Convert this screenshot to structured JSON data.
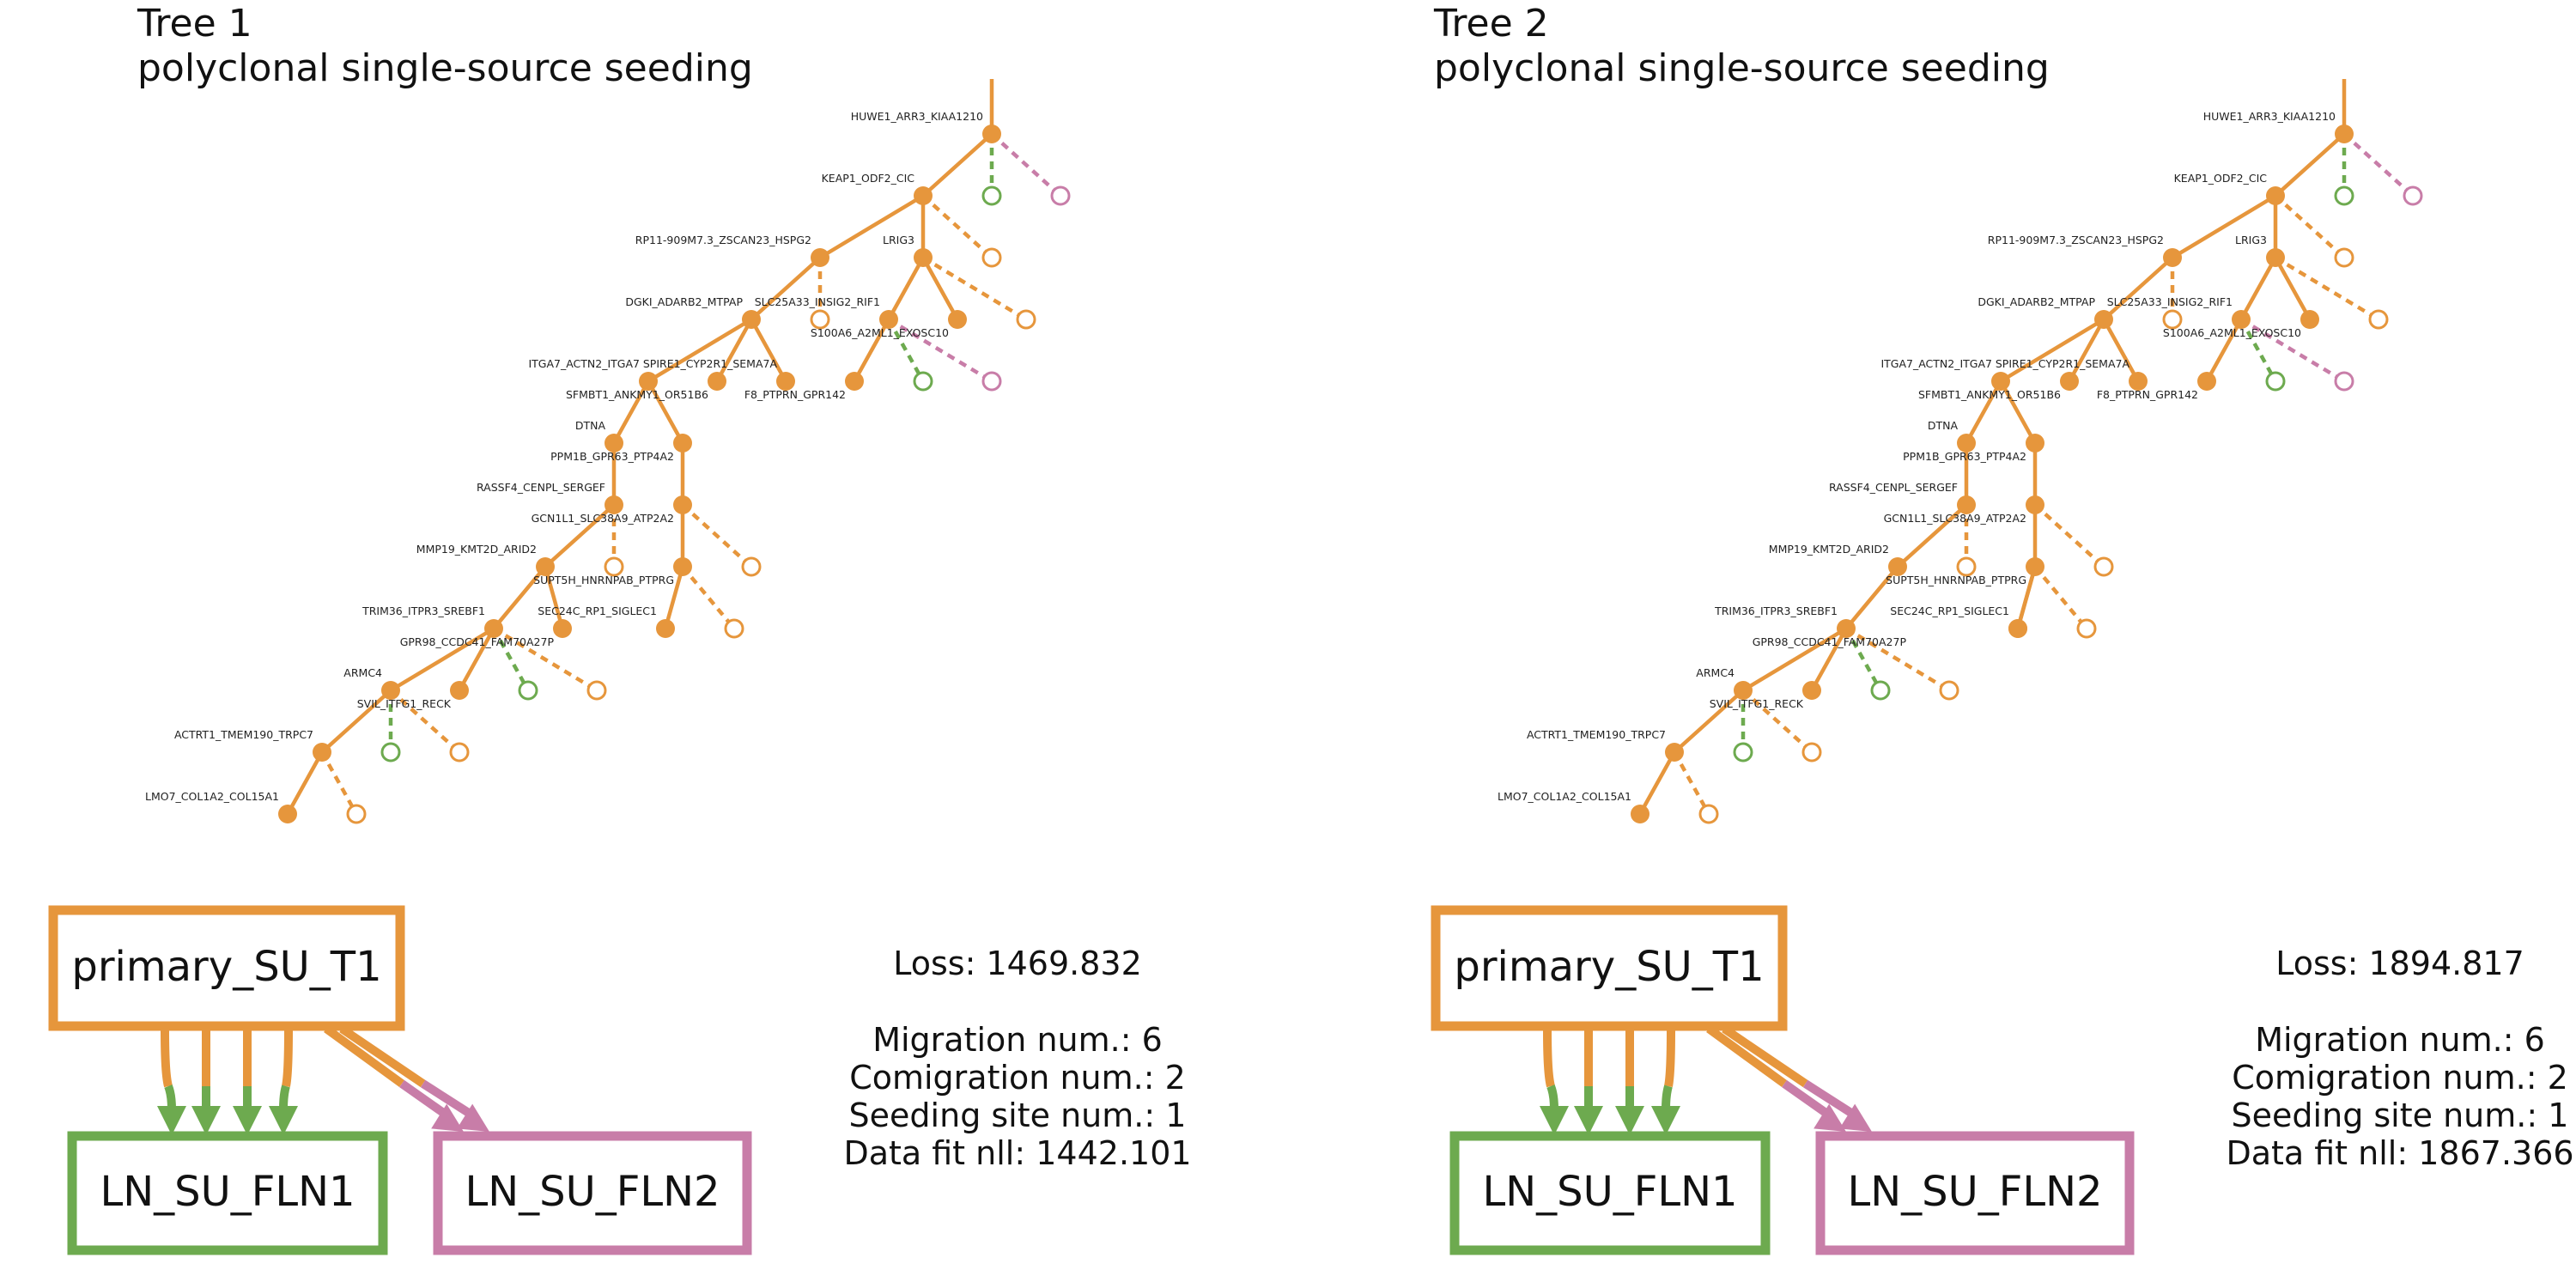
{
  "colors": {
    "primary": "#E6963C",
    "ln1": "#6DAA4F",
    "ln2": "#C87DA8",
    "text": "#111111"
  },
  "trees": [
    {
      "title": "Tree 1",
      "pattern": "polyclonal single-source seeding",
      "sites": {
        "primary": "primary_SU_T1",
        "ln1": "LN_SU_FLN1",
        "ln2": "LN_SU_FLN2"
      },
      "stats": {
        "loss": "Loss: 1469.832",
        "migration": "Migration num.: 6",
        "comigration": "Comigration num.: 2",
        "seeding": "Seeding site num.: 1",
        "datafit": "Data fit nll: 1442.101"
      }
    },
    {
      "title": "Tree 2",
      "pattern": "polyclonal single-source seeding",
      "sites": {
        "primary": "primary_SU_T1",
        "ln1": "LN_SU_FLN1",
        "ln2": "LN_SU_FLN2"
      },
      "stats": {
        "loss": "Loss: 1894.817",
        "migration": "Migration num.: 6",
        "comigration": "Comigration num.: 2",
        "seeding": "Seeding site num.: 1",
        "datafit": "Data fit nll: 1867.366"
      }
    }
  ],
  "node_labels": {
    "n1": "HUWE1_ARR3_KIAA1210",
    "n2": "KEAP1_ODF2_CIC",
    "n3": "RP11-909M7.3_ZSCAN23_HSPG2",
    "n4": "LRIG3",
    "n5": "DGKI_ADARB2_MTPAP",
    "n6": "SLC25A33_INSIG2_RIF1",
    "n7": "S100A6_A2ML1_EXOSC10",
    "n8": "ITGA7_ACTN2_ITGA7",
    "n9": "SPIRE1_CYP2R1_SEMA7A",
    "n10": "SFMBT1_ANKMY1_OR51B6",
    "n11": "F8_PTPRN_GPR142",
    "n12": "DTNA",
    "n13": "PPM1B_GPR63_PTP4A2",
    "n14": "RASSF4_CENPL_SERGEF",
    "n15": "GCN1L1_SLC38A9_ATP2A2",
    "n16": "MMP19_KMT2D_ARID2",
    "n17": "SUPT5H_HNRNPAB_PTPRG",
    "n18": "TRIM36_ITPR3_SREBF1",
    "n19": "SEC24C_RP1_SIGLEC1",
    "n20": "GPR98_CCDC41_FAM70A27P",
    "n21": "ARMC4",
    "n22": "SVIL_ITFG1_RECK",
    "n23": "ACTRT1_TMEM190_TRPC7",
    "n24": "LMO7_COL1A2_COL15A1"
  }
}
